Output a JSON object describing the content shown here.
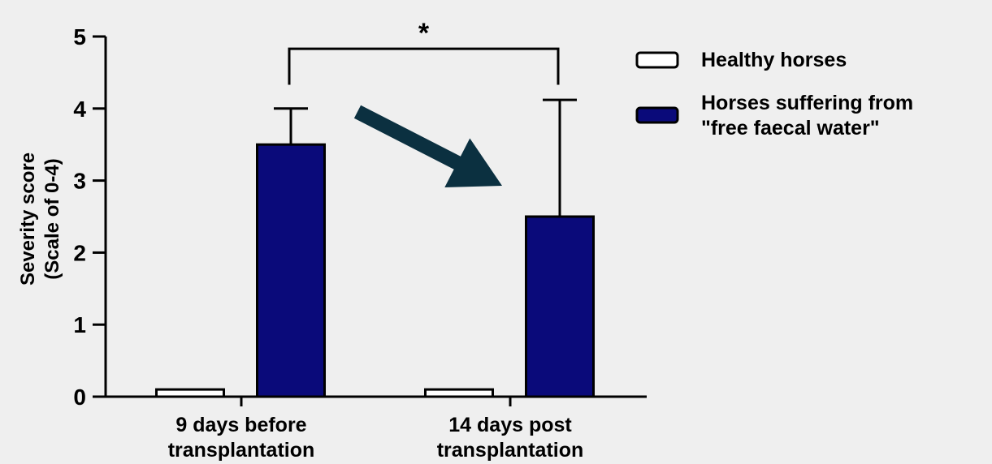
{
  "chart_data": {
    "type": "bar",
    "ylabel_line1": "Severity score",
    "ylabel_line2": "(Scale of 0-4)",
    "ylim": [
      0,
      5
    ],
    "yticks": [
      "0",
      "1",
      "2",
      "3",
      "4",
      "5"
    ],
    "categories": [
      {
        "line1": "9 days before",
        "line2": "transplantation"
      },
      {
        "line1": "14 days post",
        "line2": "transplantation"
      }
    ],
    "series": [
      {
        "name": "Healthy horses",
        "color": "#ffffff",
        "values": [
          0.1,
          0.1
        ],
        "error": [
          0,
          0
        ]
      },
      {
        "name_line1": "Horses suffering from",
        "name_line2": "\"free faecal water\"",
        "color": "#0a0a7a",
        "values": [
          3.5,
          2.5
        ],
        "error": [
          0.5,
          1.62
        ]
      }
    ],
    "significance": {
      "between_categories": [
        0,
        1
      ],
      "mark": "*"
    },
    "annotation_arrow": {
      "color": "#0b3040",
      "from_value": 4.0,
      "to_value": 2.95
    },
    "grid": false,
    "legend_position": "top-right"
  }
}
